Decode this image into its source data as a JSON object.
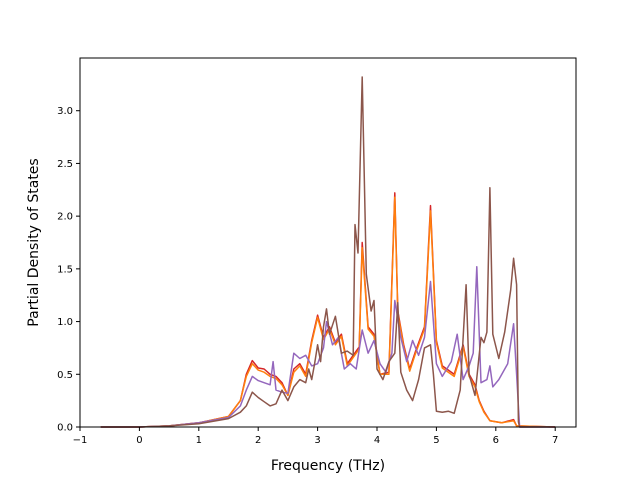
{
  "chart_data": {
    "type": "line",
    "title": "",
    "xlabel": "Frequency (THz)",
    "ylabel": "Partial Density of States",
    "xlim": [
      -1.0,
      7.35
    ],
    "ylim": [
      0.0,
      3.5
    ],
    "xticks": [
      -1,
      0,
      1,
      2,
      3,
      4,
      5,
      6,
      7
    ],
    "xtick_labels": [
      "−1",
      "0",
      "1",
      "2",
      "3",
      "4",
      "5",
      "6",
      "7"
    ],
    "yticks": [
      0.0,
      0.5,
      1.0,
      1.5,
      2.0,
      2.5,
      3.0
    ],
    "ytick_labels": [
      "0.0",
      "0.5",
      "1.0",
      "1.5",
      "2.0",
      "2.5",
      "3.0"
    ],
    "grid": false,
    "legend": "none",
    "series": [
      {
        "color": "#d62728",
        "points": [
          [
            -0.65,
            0
          ],
          [
            0,
            0.0
          ],
          [
            0.5,
            0.01
          ],
          [
            1.0,
            0.04
          ],
          [
            1.5,
            0.1
          ],
          [
            1.7,
            0.25
          ],
          [
            1.8,
            0.5
          ],
          [
            1.9,
            0.63
          ],
          [
            2.0,
            0.56
          ],
          [
            2.1,
            0.55
          ],
          [
            2.2,
            0.5
          ],
          [
            2.3,
            0.48
          ],
          [
            2.4,
            0.42
          ],
          [
            2.5,
            0.3
          ],
          [
            2.6,
            0.55
          ],
          [
            2.7,
            0.6
          ],
          [
            2.8,
            0.5
          ],
          [
            2.9,
            0.82
          ],
          [
            3.0,
            1.06
          ],
          [
            3.1,
            0.85
          ],
          [
            3.2,
            0.95
          ],
          [
            3.3,
            0.8
          ],
          [
            3.4,
            0.88
          ],
          [
            3.5,
            0.6
          ],
          [
            3.6,
            0.68
          ],
          [
            3.7,
            0.76
          ],
          [
            3.75,
            1.75
          ],
          [
            3.85,
            0.95
          ],
          [
            3.95,
            0.88
          ],
          [
            4.05,
            0.5
          ],
          [
            4.2,
            0.52
          ],
          [
            4.3,
            2.22
          ],
          [
            4.35,
            1.1
          ],
          [
            4.45,
            0.78
          ],
          [
            4.55,
            0.55
          ],
          [
            4.65,
            0.72
          ],
          [
            4.8,
            0.95
          ],
          [
            4.9,
            2.1
          ],
          [
            5.0,
            0.82
          ],
          [
            5.1,
            0.58
          ],
          [
            5.3,
            0.5
          ],
          [
            5.45,
            0.78
          ],
          [
            5.55,
            0.5
          ],
          [
            5.65,
            0.4
          ],
          [
            5.72,
            0.25
          ],
          [
            5.8,
            0.15
          ],
          [
            5.9,
            0.06
          ],
          [
            6.1,
            0.04
          ],
          [
            6.3,
            0.07
          ],
          [
            6.35,
            0.01
          ],
          [
            7.0,
            0
          ]
        ]
      },
      {
        "color": "#ff7f0e",
        "points": [
          [
            -0.65,
            0
          ],
          [
            0,
            0.0
          ],
          [
            0.5,
            0.01
          ],
          [
            1.0,
            0.04
          ],
          [
            1.5,
            0.1
          ],
          [
            1.7,
            0.25
          ],
          [
            1.8,
            0.48
          ],
          [
            1.9,
            0.6
          ],
          [
            2.0,
            0.54
          ],
          [
            2.1,
            0.52
          ],
          [
            2.2,
            0.48
          ],
          [
            2.3,
            0.46
          ],
          [
            2.4,
            0.4
          ],
          [
            2.5,
            0.3
          ],
          [
            2.6,
            0.52
          ],
          [
            2.7,
            0.58
          ],
          [
            2.8,
            0.48
          ],
          [
            2.9,
            0.8
          ],
          [
            3.0,
            1.04
          ],
          [
            3.1,
            0.83
          ],
          [
            3.2,
            0.93
          ],
          [
            3.3,
            0.78
          ],
          [
            3.4,
            0.86
          ],
          [
            3.5,
            0.58
          ],
          [
            3.6,
            0.66
          ],
          [
            3.7,
            0.74
          ],
          [
            3.75,
            1.7
          ],
          [
            3.85,
            0.93
          ],
          [
            3.95,
            0.86
          ],
          [
            4.05,
            0.5
          ],
          [
            4.2,
            0.5
          ],
          [
            4.3,
            2.18
          ],
          [
            4.35,
            1.08
          ],
          [
            4.45,
            0.76
          ],
          [
            4.55,
            0.53
          ],
          [
            4.65,
            0.7
          ],
          [
            4.8,
            0.93
          ],
          [
            4.9,
            2.05
          ],
          [
            5.0,
            0.8
          ],
          [
            5.1,
            0.56
          ],
          [
            5.3,
            0.48
          ],
          [
            5.45,
            0.76
          ],
          [
            5.55,
            0.48
          ],
          [
            5.65,
            0.38
          ],
          [
            5.72,
            0.24
          ],
          [
            5.8,
            0.14
          ],
          [
            5.9,
            0.06
          ],
          [
            6.1,
            0.04
          ],
          [
            6.3,
            0.06
          ],
          [
            6.35,
            0.01
          ],
          [
            7.0,
            0
          ]
        ]
      },
      {
        "color": "#9467bd",
        "points": [
          [
            -0.65,
            0
          ],
          [
            0,
            0.0
          ],
          [
            0.5,
            0.01
          ],
          [
            1.0,
            0.04
          ],
          [
            1.5,
            0.09
          ],
          [
            1.7,
            0.2
          ],
          [
            1.8,
            0.35
          ],
          [
            1.9,
            0.48
          ],
          [
            2.0,
            0.44
          ],
          [
            2.1,
            0.42
          ],
          [
            2.2,
            0.4
          ],
          [
            2.25,
            0.62
          ],
          [
            2.3,
            0.35
          ],
          [
            2.4,
            0.33
          ],
          [
            2.5,
            0.32
          ],
          [
            2.6,
            0.7
          ],
          [
            2.7,
            0.65
          ],
          [
            2.8,
            0.68
          ],
          [
            2.9,
            0.58
          ],
          [
            3.0,
            0.6
          ],
          [
            3.1,
            0.75
          ],
          [
            3.15,
            1.0
          ],
          [
            3.25,
            0.78
          ],
          [
            3.35,
            0.85
          ],
          [
            3.45,
            0.55
          ],
          [
            3.55,
            0.6
          ],
          [
            3.65,
            0.55
          ],
          [
            3.75,
            0.92
          ],
          [
            3.85,
            0.7
          ],
          [
            3.95,
            0.82
          ],
          [
            4.05,
            0.6
          ],
          [
            4.15,
            0.52
          ],
          [
            4.25,
            0.7
          ],
          [
            4.3,
            1.2
          ],
          [
            4.4,
            0.85
          ],
          [
            4.5,
            0.62
          ],
          [
            4.6,
            0.82
          ],
          [
            4.7,
            0.68
          ],
          [
            4.8,
            0.85
          ],
          [
            4.9,
            1.38
          ],
          [
            5.0,
            0.6
          ],
          [
            5.1,
            0.48
          ],
          [
            5.25,
            0.62
          ],
          [
            5.35,
            0.88
          ],
          [
            5.45,
            0.45
          ],
          [
            5.55,
            0.58
          ],
          [
            5.62,
            0.7
          ],
          [
            5.68,
            1.52
          ],
          [
            5.75,
            0.42
          ],
          [
            5.85,
            0.45
          ],
          [
            5.9,
            0.58
          ],
          [
            5.95,
            0.38
          ],
          [
            6.05,
            0.45
          ],
          [
            6.2,
            0.6
          ],
          [
            6.3,
            0.98
          ],
          [
            6.35,
            0.5
          ],
          [
            6.4,
            0
          ],
          [
            7.0,
            0
          ]
        ]
      },
      {
        "color": "#8c564b",
        "points": [
          [
            -0.65,
            0
          ],
          [
            0,
            0.0
          ],
          [
            0.5,
            0.01
          ],
          [
            1.0,
            0.03
          ],
          [
            1.5,
            0.08
          ],
          [
            1.7,
            0.14
          ],
          [
            1.8,
            0.2
          ],
          [
            1.9,
            0.33
          ],
          [
            2.0,
            0.28
          ],
          [
            2.1,
            0.24
          ],
          [
            2.2,
            0.2
          ],
          [
            2.3,
            0.22
          ],
          [
            2.4,
            0.35
          ],
          [
            2.5,
            0.25
          ],
          [
            2.6,
            0.38
          ],
          [
            2.7,
            0.45
          ],
          [
            2.8,
            0.42
          ],
          [
            2.85,
            0.55
          ],
          [
            2.9,
            0.45
          ],
          [
            2.95,
            0.6
          ],
          [
            3.0,
            0.78
          ],
          [
            3.05,
            0.62
          ],
          [
            3.1,
            0.95
          ],
          [
            3.15,
            1.12
          ],
          [
            3.2,
            0.88
          ],
          [
            3.3,
            1.05
          ],
          [
            3.4,
            0.7
          ],
          [
            3.5,
            0.72
          ],
          [
            3.6,
            0.68
          ],
          [
            3.63,
            1.92
          ],
          [
            3.68,
            1.65
          ],
          [
            3.75,
            3.32
          ],
          [
            3.82,
            1.45
          ],
          [
            3.9,
            1.1
          ],
          [
            3.95,
            1.2
          ],
          [
            4.0,
            0.55
          ],
          [
            4.1,
            0.45
          ],
          [
            4.2,
            0.62
          ],
          [
            4.3,
            0.7
          ],
          [
            4.35,
            1.18
          ],
          [
            4.4,
            0.52
          ],
          [
            4.5,
            0.35
          ],
          [
            4.6,
            0.25
          ],
          [
            4.7,
            0.45
          ],
          [
            4.8,
            0.75
          ],
          [
            4.9,
            0.78
          ],
          [
            4.95,
            0.5
          ],
          [
            5.0,
            0.15
          ],
          [
            5.1,
            0.14
          ],
          [
            5.2,
            0.15
          ],
          [
            5.3,
            0.13
          ],
          [
            5.4,
            0.35
          ],
          [
            5.5,
            1.35
          ],
          [
            5.55,
            0.5
          ],
          [
            5.65,
            0.3
          ],
          [
            5.75,
            0.85
          ],
          [
            5.8,
            0.8
          ],
          [
            5.85,
            0.9
          ],
          [
            5.9,
            2.27
          ],
          [
            5.95,
            0.88
          ],
          [
            6.05,
            0.65
          ],
          [
            6.15,
            0.9
          ],
          [
            6.25,
            1.3
          ],
          [
            6.3,
            1.6
          ],
          [
            6.35,
            1.35
          ],
          [
            6.38,
            0.05
          ],
          [
            6.4,
            0
          ],
          [
            7.0,
            0
          ]
        ]
      }
    ]
  }
}
